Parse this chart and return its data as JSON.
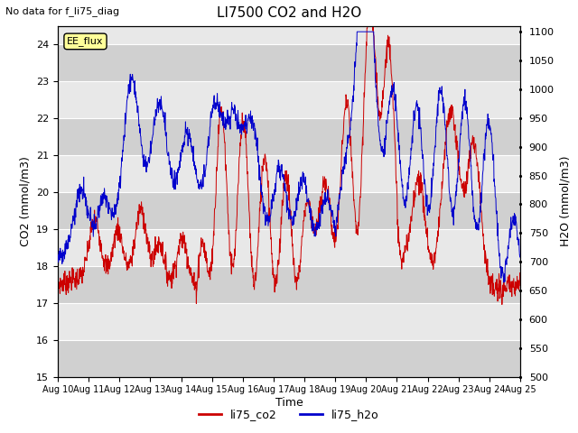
{
  "title": "LI7500 CO2 and H2O",
  "subtitle": "No data for f_li75_diag",
  "xlabel": "Time",
  "ylabel_left": "CO2 (mmol/m3)",
  "ylabel_right": "H2O (mmol/m3)",
  "ylim_left": [
    15.0,
    24.5
  ],
  "ylim_right": [
    500,
    1110
  ],
  "yticks_left": [
    15.0,
    16.0,
    17.0,
    18.0,
    19.0,
    20.0,
    21.0,
    22.0,
    23.0,
    24.0
  ],
  "yticks_right": [
    500,
    550,
    600,
    650,
    700,
    750,
    800,
    850,
    900,
    950,
    1000,
    1050,
    1100
  ],
  "xticklabels": [
    "Aug 10",
    "Aug 11",
    "Aug 12",
    "Aug 13",
    "Aug 14",
    "Aug 15",
    "Aug 16",
    "Aug 17",
    "Aug 18",
    "Aug 19",
    "Aug 20",
    "Aug 21",
    "Aug 22",
    "Aug 23",
    "Aug 24",
    "Aug 25"
  ],
  "color_co2": "#cc0000",
  "color_h2o": "#0000cc",
  "legend_label_co2": "li75_co2",
  "legend_label_h2o": "li75_h2o",
  "annotation_text": "EE_flux",
  "background_color": "#ffffff",
  "plot_bg_color_light": "#e8e8e8",
  "plot_bg_color_dark": "#d0d0d0",
  "grid_color": "#ffffff",
  "n_points": 1500
}
